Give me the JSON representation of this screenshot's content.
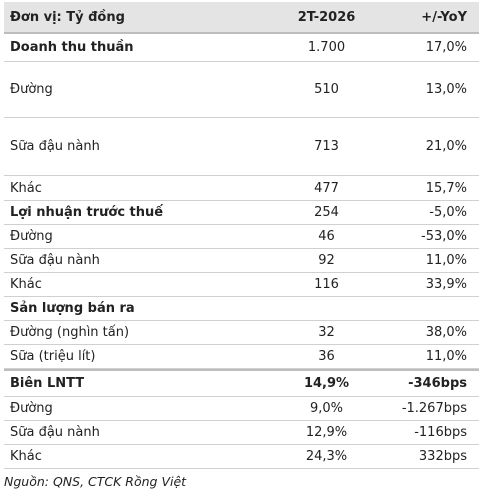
{
  "table": {
    "header": [
      "Đơn vị: Tỷ đồng",
      "2T-2026",
      "+/-YoY"
    ],
    "rows": [
      [
        "Doanh thu thuần",
        "1.700",
        "17,0%"
      ],
      [
        "Đường",
        "510",
        "13,0%"
      ],
      [
        "Sữa đậu nành",
        "713",
        "21,0%"
      ],
      [
        "Khác",
        "477",
        "15,7%"
      ],
      [
        "Lợi nhuận trước thuế",
        "254",
        "-5,0%"
      ],
      [
        "Đường",
        "46",
        "-53,0%"
      ],
      [
        "Sữa đậu nành",
        "92",
        "11,0%"
      ],
      [
        "Khác",
        "116",
        "33,9%"
      ],
      [
        "Sản lượng bán ra"
      ],
      [
        "Đường (nghìn tấn)",
        "32",
        "38,0%"
      ],
      [
        "Sữa (triệu lít)",
        "36",
        "11,0%"
      ],
      [
        "Biên LNTT",
        "14,9%",
        "-346bps"
      ],
      [
        "Đường",
        "9,0%",
        "-1.267bps"
      ],
      [
        "Sữa đậu nành",
        "12,9%",
        "-116bps"
      ],
      [
        "Khác",
        "24,3%",
        "332bps"
      ]
    ]
  },
  "source": "Nguồn: QNS, CTCK Rồng Việt"
}
